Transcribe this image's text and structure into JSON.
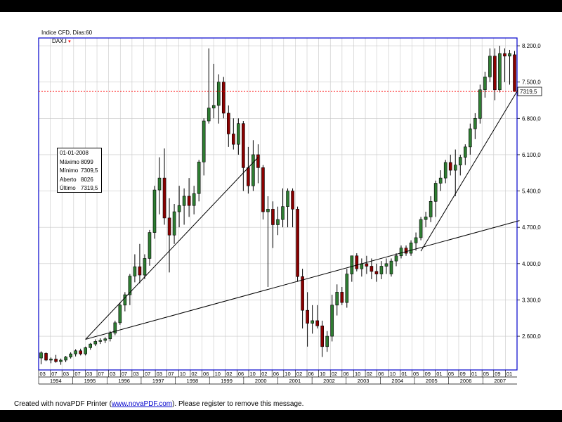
{
  "header": {
    "title": "Indice CFD, Días:60",
    "series_label": "DAX.I"
  },
  "infobox": {
    "date": "01-01-2008",
    "rows": [
      {
        "label": "Máximo",
        "value": "8099"
      },
      {
        "label": "Mínimo",
        "value": "7309,5"
      },
      {
        "label": "Aberto",
        "value": "8026"
      },
      {
        "label": "Último",
        "value": "7319,5"
      }
    ]
  },
  "price_tag": "7319,5",
  "footer": {
    "prefix": "Created with novaPDF Printer (",
    "link": "www.novaPDF.com",
    "suffix": "). Please register to remove this message."
  },
  "colors": {
    "up": "#2e7d32",
    "down": "#8b0000",
    "hline": "#ff0000",
    "frame": "#0000cc"
  },
  "chart_data": {
    "type": "candlestick",
    "title": "Indice CFD, Días:60",
    "series": "DAX.I",
    "y_ticks": [
      "2.600,0",
      "3.300,0",
      "4.000,0",
      "4.700,0",
      "5.400,0",
      "6.100,0",
      "6.800,0",
      "7.500,0",
      "8.200,0"
    ],
    "y_tick_values": [
      2600,
      3300,
      4000,
      4700,
      5400,
      6100,
      6800,
      7500,
      8200
    ],
    "ylim": [
      1950,
      8350
    ],
    "month_labels": [
      "03",
      "07",
      "03",
      "07",
      "03",
      "07",
      "03",
      "07",
      "03",
      "07",
      "03",
      "07",
      "10",
      "02",
      "06",
      "10",
      "02",
      "06",
      "10",
      "02",
      "06",
      "10",
      "02",
      "06",
      "10",
      "02",
      "06",
      "10",
      "02",
      "06",
      "10",
      "01",
      "05",
      "09",
      "01",
      "05",
      "09",
      "01",
      "05",
      "09",
      "01"
    ],
    "year_labels": [
      "1994",
      "1995",
      "1996",
      "1997",
      "1998",
      "1999",
      "2000",
      "2001",
      "2002",
      "2003",
      "2004",
      "2005",
      "2006",
      "2007"
    ],
    "horizontal_line": 7319.5,
    "trendlines": [
      {
        "from": [
          9,
          2540
        ],
        "to": [
          44,
          6050
        ]
      },
      {
        "from": [
          9,
          2540
        ],
        "to": [
          97,
          4830
        ]
      },
      {
        "from": [
          77,
          4240
        ],
        "to": [
          97,
          7400
        ]
      }
    ],
    "candles": [
      {
        "o": 2180,
        "h": 2310,
        "l": 2060,
        "c": 2280
      },
      {
        "o": 2270,
        "h": 2290,
        "l": 2120,
        "c": 2140
      },
      {
        "o": 2140,
        "h": 2190,
        "l": 2080,
        "c": 2160
      },
      {
        "o": 2160,
        "h": 2240,
        "l": 2090,
        "c": 2110
      },
      {
        "o": 2110,
        "h": 2170,
        "l": 2050,
        "c": 2140
      },
      {
        "o": 2140,
        "h": 2220,
        "l": 2100,
        "c": 2200
      },
      {
        "o": 2200,
        "h": 2290,
        "l": 2170,
        "c": 2260
      },
      {
        "o": 2260,
        "h": 2350,
        "l": 2210,
        "c": 2320
      },
      {
        "o": 2320,
        "h": 2360,
        "l": 2230,
        "c": 2260
      },
      {
        "o": 2260,
        "h": 2400,
        "l": 2230,
        "c": 2380
      },
      {
        "o": 2380,
        "h": 2470,
        "l": 2340,
        "c": 2450
      },
      {
        "o": 2450,
        "h": 2540,
        "l": 2410,
        "c": 2500
      },
      {
        "o": 2500,
        "h": 2560,
        "l": 2450,
        "c": 2520
      },
      {
        "o": 2520,
        "h": 2580,
        "l": 2470,
        "c": 2550
      },
      {
        "o": 2550,
        "h": 2700,
        "l": 2500,
        "c": 2660
      },
      {
        "o": 2660,
        "h": 2900,
        "l": 2620,
        "c": 2860
      },
      {
        "o": 2860,
        "h": 3250,
        "l": 2820,
        "c": 3200
      },
      {
        "o": 3200,
        "h": 3450,
        "l": 3080,
        "c": 3400
      },
      {
        "o": 3400,
        "h": 3800,
        "l": 3200,
        "c": 3760
      },
      {
        "o": 3760,
        "h": 4180,
        "l": 3640,
        "c": 3940
      },
      {
        "o": 3940,
        "h": 4380,
        "l": 3620,
        "c": 3780
      },
      {
        "o": 3780,
        "h": 4180,
        "l": 3700,
        "c": 4100
      },
      {
        "o": 4100,
        "h": 4650,
        "l": 3960,
        "c": 4600
      },
      {
        "o": 4600,
        "h": 5500,
        "l": 4480,
        "c": 5420
      },
      {
        "o": 5420,
        "h": 6050,
        "l": 4950,
        "c": 5650
      },
      {
        "o": 5650,
        "h": 6220,
        "l": 4750,
        "c": 4880
      },
      {
        "o": 4880,
        "h": 5260,
        "l": 3830,
        "c": 4550
      },
      {
        "o": 4550,
        "h": 5150,
        "l": 4380,
        "c": 5000
      },
      {
        "o": 5000,
        "h": 5500,
        "l": 4700,
        "c": 5120
      },
      {
        "o": 5120,
        "h": 5450,
        "l": 4750,
        "c": 5300
      },
      {
        "o": 5300,
        "h": 5650,
        "l": 4900,
        "c": 5120
      },
      {
        "o": 5120,
        "h": 5500,
        "l": 4950,
        "c": 5350
      },
      {
        "o": 5350,
        "h": 6000,
        "l": 5200,
        "c": 5960
      },
      {
        "o": 5960,
        "h": 6800,
        "l": 5700,
        "c": 6750
      },
      {
        "o": 6750,
        "h": 8150,
        "l": 6700,
        "c": 7000
      },
      {
        "o": 7000,
        "h": 7850,
        "l": 6800,
        "c": 7050
      },
      {
        "o": 7050,
        "h": 7650,
        "l": 6700,
        "c": 7500
      },
      {
        "o": 7500,
        "h": 7600,
        "l": 6800,
        "c": 6900
      },
      {
        "o": 6900,
        "h": 7050,
        "l": 6250,
        "c": 6500
      },
      {
        "o": 6500,
        "h": 6800,
        "l": 6200,
        "c": 6300
      },
      {
        "o": 6300,
        "h": 6800,
        "l": 6100,
        "c": 6700
      },
      {
        "o": 6700,
        "h": 6750,
        "l": 5400,
        "c": 5850
      },
      {
        "o": 5850,
        "h": 6250,
        "l": 5350,
        "c": 5500
      },
      {
        "o": 5500,
        "h": 6380,
        "l": 5400,
        "c": 6100
      },
      {
        "o": 6100,
        "h": 6300,
        "l": 5550,
        "c": 5850
      },
      {
        "o": 5850,
        "h": 5900,
        "l": 4850,
        "c": 5000
      },
      {
        "o": 5000,
        "h": 5300,
        "l": 3550,
        "c": 5050
      },
      {
        "o": 5050,
        "h": 5200,
        "l": 4300,
        "c": 4750
      },
      {
        "o": 4750,
        "h": 5100,
        "l": 4550,
        "c": 4850
      },
      {
        "o": 4850,
        "h": 5450,
        "l": 4700,
        "c": 5100
      },
      {
        "o": 5100,
        "h": 5450,
        "l": 4700,
        "c": 5400
      },
      {
        "o": 5400,
        "h": 5450,
        "l": 4700,
        "c": 5050
      },
      {
        "o": 5050,
        "h": 5100,
        "l": 3650,
        "c": 3750
      },
      {
        "o": 3750,
        "h": 3900,
        "l": 2750,
        "c": 3100
      },
      {
        "o": 3100,
        "h": 3450,
        "l": 2400,
        "c": 2850
      },
      {
        "o": 2850,
        "h": 3200,
        "l": 2650,
        "c": 2900
      },
      {
        "o": 2900,
        "h": 3200,
        "l": 2750,
        "c": 2800
      },
      {
        "o": 2800,
        "h": 2900,
        "l": 2200,
        "c": 2400
      },
      {
        "o": 2400,
        "h": 2700,
        "l": 2300,
        "c": 2600
      },
      {
        "o": 2600,
        "h": 3400,
        "l": 2500,
        "c": 3200
      },
      {
        "o": 3200,
        "h": 3600,
        "l": 3000,
        "c": 3450
      },
      {
        "o": 3450,
        "h": 3550,
        "l": 3200,
        "c": 3250
      },
      {
        "o": 3250,
        "h": 3900,
        "l": 3150,
        "c": 3800
      },
      {
        "o": 3800,
        "h": 4100,
        "l": 3650,
        "c": 4150
      },
      {
        "o": 4150,
        "h": 4200,
        "l": 3850,
        "c": 3900
      },
      {
        "o": 3900,
        "h": 4100,
        "l": 3750,
        "c": 4000
      },
      {
        "o": 4000,
        "h": 4150,
        "l": 3800,
        "c": 3950
      },
      {
        "o": 3950,
        "h": 4100,
        "l": 3700,
        "c": 3850
      },
      {
        "o": 3850,
        "h": 4000,
        "l": 3650,
        "c": 3800
      },
      {
        "o": 3800,
        "h": 4050,
        "l": 3700,
        "c": 3950
      },
      {
        "o": 3950,
        "h": 4100,
        "l": 3800,
        "c": 4000
      },
      {
        "o": 3800,
        "h": 4100,
        "l": 3750,
        "c": 4050
      },
      {
        "o": 4050,
        "h": 4200,
        "l": 3950,
        "c": 4150
      },
      {
        "o": 4150,
        "h": 4350,
        "l": 4100,
        "c": 4300
      },
      {
        "o": 4300,
        "h": 4350,
        "l": 4150,
        "c": 4200
      },
      {
        "o": 4200,
        "h": 4450,
        "l": 4150,
        "c": 4400
      },
      {
        "o": 4400,
        "h": 4600,
        "l": 4250,
        "c": 4500
      },
      {
        "o": 4500,
        "h": 4900,
        "l": 4450,
        "c": 4850
      },
      {
        "o": 4850,
        "h": 5000,
        "l": 4700,
        "c": 4900
      },
      {
        "o": 4900,
        "h": 5300,
        "l": 4800,
        "c": 5200
      },
      {
        "o": 5200,
        "h": 5600,
        "l": 4900,
        "c": 5550
      },
      {
        "o": 5550,
        "h": 5800,
        "l": 5400,
        "c": 5650
      },
      {
        "o": 5650,
        "h": 6000,
        "l": 5550,
        "c": 5950
      },
      {
        "o": 5950,
        "h": 6100,
        "l": 5700,
        "c": 5800
      },
      {
        "o": 5800,
        "h": 6200,
        "l": 5300,
        "c": 5900
      },
      {
        "o": 5900,
        "h": 6100,
        "l": 5700,
        "c": 6050
      },
      {
        "o": 6050,
        "h": 6300,
        "l": 5900,
        "c": 6250
      },
      {
        "o": 6250,
        "h": 6700,
        "l": 6100,
        "c": 6600
      },
      {
        "o": 6600,
        "h": 6900,
        "l": 6400,
        "c": 6800
      },
      {
        "o": 6800,
        "h": 7450,
        "l": 6700,
        "c": 7350
      },
      {
        "o": 7350,
        "h": 7700,
        "l": 7200,
        "c": 7600
      },
      {
        "o": 7600,
        "h": 8150,
        "l": 7500,
        "c": 8000
      },
      {
        "o": 8000,
        "h": 8150,
        "l": 7150,
        "c": 7350
      },
      {
        "o": 7350,
        "h": 8200,
        "l": 7300,
        "c": 8050
      },
      {
        "o": 8050,
        "h": 8150,
        "l": 7500,
        "c": 8000
      },
      {
        "o": 8000,
        "h": 8120,
        "l": 7450,
        "c": 8050
      },
      {
        "o": 8026,
        "h": 8099,
        "l": 7309.5,
        "c": 7319.5
      }
    ]
  }
}
